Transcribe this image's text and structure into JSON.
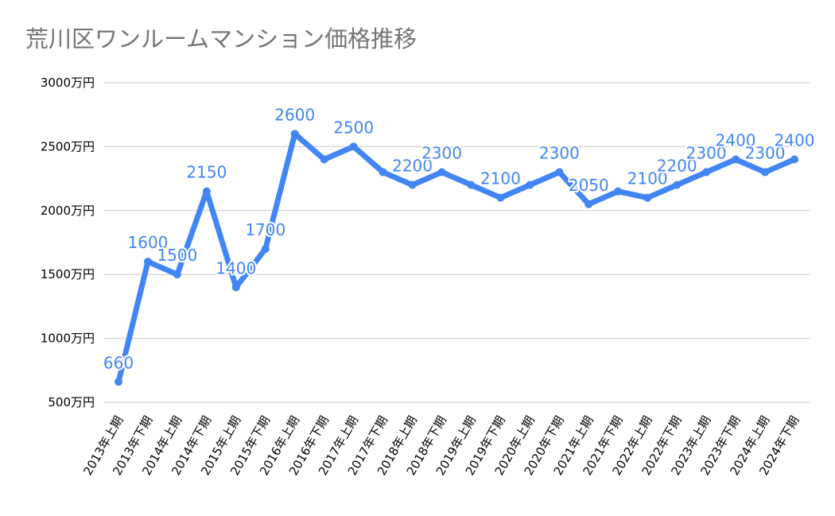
{
  "chart_data": {
    "type": "line",
    "title": "荒川区ワンルームマンション価格推移",
    "xlabel": "",
    "ylabel": "",
    "ylim": [
      500,
      3000
    ],
    "yticks": [
      500,
      1000,
      1500,
      2000,
      2500,
      3000
    ],
    "ytick_labels": [
      "500万円",
      "1000万円",
      "1500万円",
      "2000万円",
      "2500万円",
      "3000万円"
    ],
    "categories": [
      "2013年上期",
      "2013年下期",
      "2014年上期",
      "2014年下期",
      "2015年上期",
      "2015年下期",
      "2016年上期",
      "2016年下期",
      "2017年上期",
      "2017年下期",
      "2018年上期",
      "2018年下期",
      "2019年上期",
      "2019年下期",
      "2020年上期",
      "2020年下期",
      "2021年上期",
      "2021年下期",
      "2022年上期",
      "2022年下期",
      "2023年上期",
      "2023年下期",
      "2024年上期",
      "2024年下期"
    ],
    "series": [
      {
        "name": "価格",
        "color": "#4285F4",
        "values": [
          660,
          1600,
          1500,
          2150,
          1400,
          1700,
          2600,
          2400,
          2500,
          2300,
          2200,
          2300,
          2200,
          2100,
          2200,
          2300,
          2050,
          2150,
          2100,
          2200,
          2300,
          2400,
          2300,
          2400
        ],
        "data_labels": [
          "660",
          "1600",
          "1500",
          "2150",
          "1400",
          "1700",
          "2600",
          "",
          "2500",
          "",
          "2200",
          "2300",
          "",
          "2100",
          "",
          "2300",
          "2050",
          "",
          "2100",
          "2200",
          "2300",
          "2400",
          "2300",
          "2400"
        ]
      }
    ],
    "grid": true,
    "gridline_color": "#cccccc",
    "legend": "none"
  }
}
